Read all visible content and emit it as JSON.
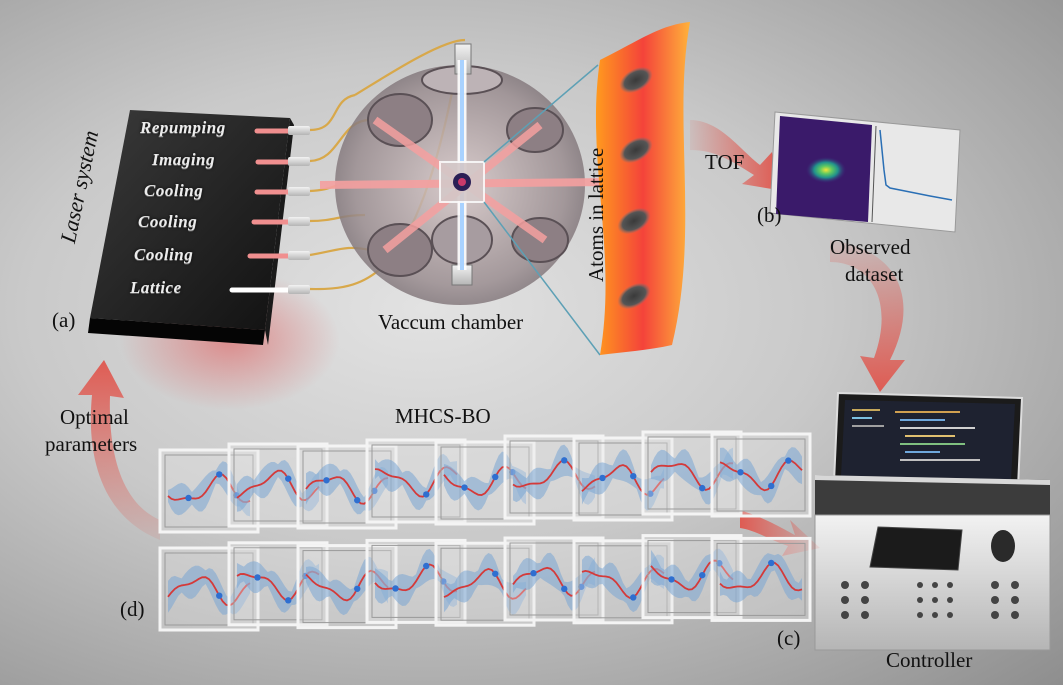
{
  "laser": {
    "title": "Laser system",
    "beams": [
      "Repumping",
      "Imaging",
      "Cooling",
      "Cooling",
      "Cooling",
      "Lattice"
    ]
  },
  "labels": {
    "a": "(a)",
    "b": "(b)",
    "c": "(c)",
    "d": "(d)",
    "vacuum": "Vaccum chamber",
    "atoms": "Atoms in lattice",
    "tof": "TOF",
    "observed_line1": "Observed",
    "observed_line2": "dataset",
    "controller": "Controller",
    "optimal_line1": "Optimal",
    "optimal_line2": "parameters",
    "mhcs": "MHCS-BO"
  },
  "colors": {
    "arrow": "#d9534a",
    "beam": "#f08f8f",
    "lattice_beam": "#ffffff",
    "gp_band": "#7aa6d4",
    "gp_mean": "#d43a3a",
    "gp_point": "#2f6fd0"
  }
}
